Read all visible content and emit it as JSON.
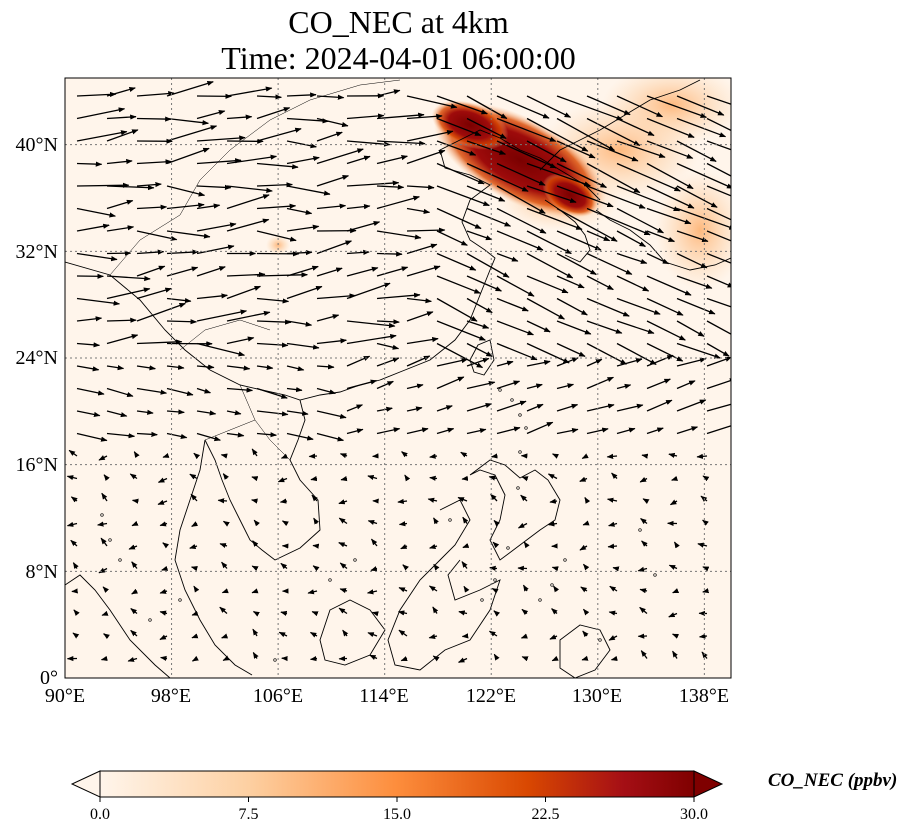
{
  "title": {
    "line1": "CO_NEC at 4km",
    "line2": "Time: 2024-04-01 06:00:00"
  },
  "map": {
    "lat_ticks": [
      "0°",
      "8°N",
      "16°N",
      "24°N",
      "32°N",
      "40°N"
    ],
    "lat_values": [
      0,
      8,
      16,
      24,
      32,
      40
    ],
    "lon_ticks": [
      "90°E",
      "98°E",
      "106°E",
      "114°E",
      "122°E",
      "130°E",
      "138°E"
    ],
    "lon_values": [
      90,
      98,
      106,
      114,
      122,
      130,
      138
    ],
    "extent": {
      "lon_min": 90,
      "lon_max": 140,
      "lat_min": 0,
      "lat_max": 45
    },
    "gridlines": true,
    "plume_color": "#7f0000",
    "background_color": "#fff5eb"
  },
  "colorbar": {
    "label": "CO_NEC (ppbv)",
    "ticks": [
      "0.0",
      "7.5",
      "15.0",
      "22.5",
      "30.0"
    ],
    "tick_values": [
      0,
      7.5,
      15,
      22.5,
      30
    ],
    "range": [
      0,
      30
    ],
    "extend": "both",
    "colormap": "OrRd",
    "colors": [
      "#fff5eb",
      "#fdd0a2",
      "#fd8d3c",
      "#d94801",
      "#8c0000",
      "#7f0000"
    ]
  }
}
